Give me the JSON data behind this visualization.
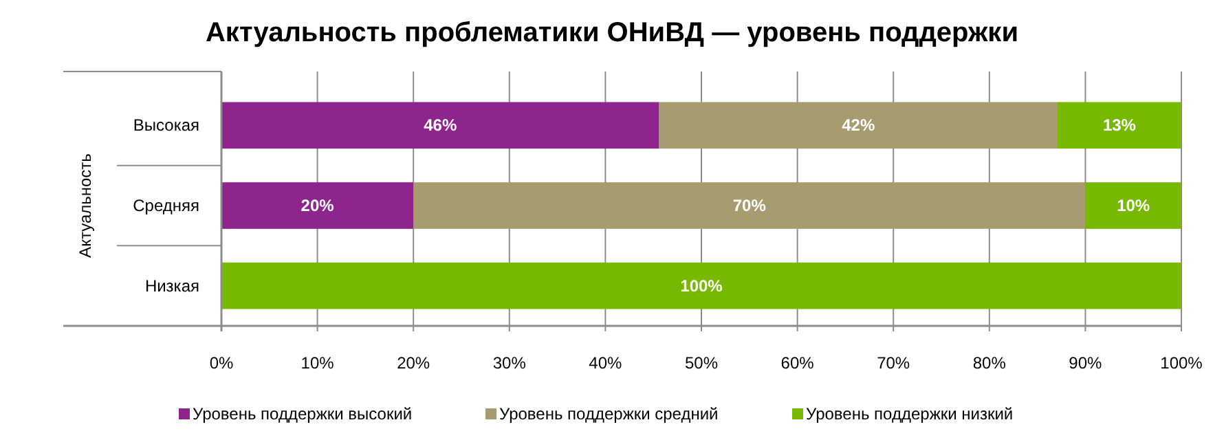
{
  "chart_data": {
    "type": "bar",
    "orientation": "horizontal",
    "stacked": true,
    "title": "Актуальность проблематики ОНиВД — уровень поддержки",
    "ylabel": "Актуальность",
    "categories": [
      "Высокая",
      "Средняя",
      "Низкая"
    ],
    "series": [
      {
        "name": "Уровень поддержки высокий",
        "color": "#8e258d",
        "values": [
          45.6,
          20,
          null
        ],
        "value_labels": [
          "46%",
          "20%",
          null
        ]
      },
      {
        "name": "Уровень поддержки средний",
        "color": "#a89b6f",
        "values": [
          41.5,
          70,
          null
        ],
        "value_labels": [
          "42%",
          "70%",
          null
        ]
      },
      {
        "name": "Уровень поддержки низкий",
        "color": "#77b800",
        "values": [
          12.9,
          10,
          100
        ],
        "value_labels": [
          "13%",
          "10%",
          "100%"
        ]
      }
    ],
    "xlim": [
      0,
      100
    ],
    "xticks": [
      {
        "value": 0,
        "label": "0%"
      },
      {
        "value": 10,
        "label": "10%"
      },
      {
        "value": 20,
        "label": "20%"
      },
      {
        "value": 30,
        "label": "30%"
      },
      {
        "value": 40,
        "label": "40%"
      },
      {
        "value": 50,
        "label": "50%"
      },
      {
        "value": 60,
        "label": "60%"
      },
      {
        "value": 70,
        "label": "70%"
      },
      {
        "value": 80,
        "label": "80%"
      },
      {
        "value": 90,
        "label": "90%"
      },
      {
        "value": 100,
        "label": "100%"
      }
    ],
    "grid": "x",
    "legend": "bottom"
  }
}
